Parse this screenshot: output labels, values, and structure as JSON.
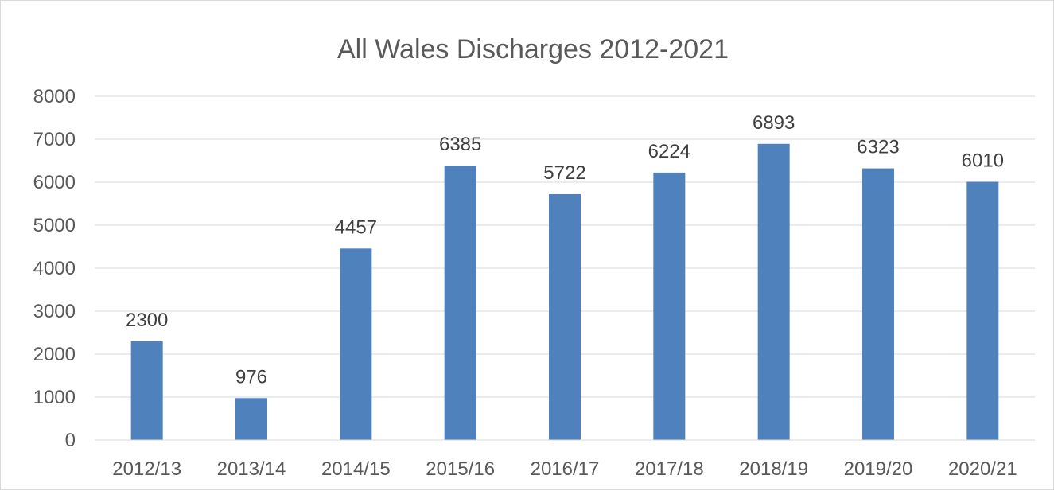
{
  "chart_data": {
    "type": "bar",
    "title": "All Wales Discharges 2012-2021",
    "xlabel": "",
    "ylabel": "",
    "categories": [
      "2012/13",
      "2013/14",
      "2014/15",
      "2015/16",
      "2016/17",
      "2017/18",
      "2018/19",
      "2019/20",
      "2020/21"
    ],
    "values": [
      2300,
      976,
      4457,
      6385,
      5722,
      6224,
      6893,
      6323,
      6010
    ],
    "ylim": [
      0,
      8000
    ],
    "yticks": [
      0,
      1000,
      2000,
      3000,
      4000,
      5000,
      6000,
      7000,
      8000
    ],
    "grid": true,
    "legend": "none",
    "bar_color": "#4f81bd",
    "data_labels": true
  }
}
